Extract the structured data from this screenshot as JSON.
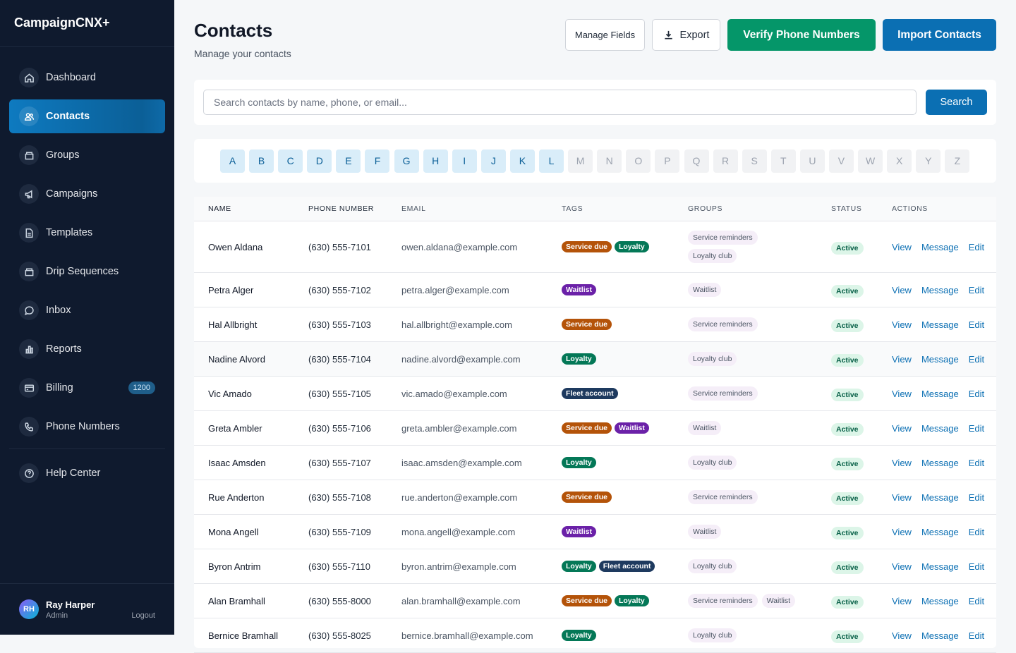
{
  "app": {
    "brand": "CampaignCNX+"
  },
  "sidebar": {
    "items": [
      {
        "label": "Dashboard",
        "icon": "home-icon"
      },
      {
        "label": "Contacts",
        "icon": "users-icon",
        "active": true
      },
      {
        "label": "Groups",
        "icon": "folder-icon"
      },
      {
        "label": "Campaigns",
        "icon": "megaphone-icon"
      },
      {
        "label": "Templates",
        "icon": "document-icon"
      },
      {
        "label": "Drip Sequences",
        "icon": "folder-icon"
      },
      {
        "label": "Inbox",
        "icon": "chat-icon"
      },
      {
        "label": "Reports",
        "icon": "bar-chart-icon"
      },
      {
        "label": "Billing",
        "icon": "credit-card-icon",
        "badge": "1200"
      },
      {
        "label": "Phone Numbers",
        "icon": "phone-icon"
      }
    ],
    "help": {
      "label": "Help Center",
      "icon": "help-icon"
    },
    "user": {
      "initials": "RH",
      "name": "Ray Harper",
      "role": "Admin",
      "logout": "Logout"
    }
  },
  "header": {
    "title": "Contacts",
    "subtitle": "Manage your contacts",
    "manage_fields": "Manage Fields",
    "export": "Export",
    "verify": "Verify Phone Numbers",
    "import": "Import Contacts"
  },
  "search": {
    "placeholder": "Search contacts by name, phone, or email...",
    "button": "Search"
  },
  "alphabet": {
    "enabled": [
      "A",
      "B",
      "C",
      "D",
      "E",
      "F",
      "G",
      "H",
      "I",
      "J",
      "K",
      "L"
    ],
    "disabled": [
      "M",
      "N",
      "O",
      "P",
      "Q",
      "R",
      "S",
      "T",
      "U",
      "V",
      "W",
      "X",
      "Y",
      "Z"
    ]
  },
  "table": {
    "columns": [
      "NAME",
      "PHONE NUMBER",
      "EMAIL",
      "TAGS",
      "GROUPS",
      "STATUS",
      "ACTIONS"
    ],
    "actions": [
      "View",
      "Message",
      "Edit"
    ],
    "rows": [
      {
        "name": "Owen Aldana",
        "phone": "(630) 555-7101",
        "email": "owen.aldana@example.com",
        "tags": [
          "Service due",
          "Loyalty"
        ],
        "groups": [
          "Service reminders",
          "Loyalty club"
        ],
        "status": "Active"
      },
      {
        "name": "Petra Alger",
        "phone": "(630) 555-7102",
        "email": "petra.alger@example.com",
        "tags": [
          "Waitlist"
        ],
        "groups": [
          "Waitlist"
        ],
        "status": "Active"
      },
      {
        "name": "Hal Allbright",
        "phone": "(630) 555-7103",
        "email": "hal.allbright@example.com",
        "tags": [
          "Service due"
        ],
        "groups": [
          "Service reminders"
        ],
        "status": "Active"
      },
      {
        "name": "Nadine Alvord",
        "phone": "(630) 555-7104",
        "email": "nadine.alvord@example.com",
        "tags": [
          "Loyalty"
        ],
        "groups": [
          "Loyalty club"
        ],
        "status": "Active"
      },
      {
        "name": "Vic Amado",
        "phone": "(630) 555-7105",
        "email": "vic.amado@example.com",
        "tags": [
          "Fleet account"
        ],
        "groups": [
          "Service reminders"
        ],
        "status": "Active"
      },
      {
        "name": "Greta Ambler",
        "phone": "(630) 555-7106",
        "email": "greta.ambler@example.com",
        "tags": [
          "Service due",
          "Waitlist"
        ],
        "groups": [
          "Waitlist"
        ],
        "status": "Active"
      },
      {
        "name": "Isaac Amsden",
        "phone": "(630) 555-7107",
        "email": "isaac.amsden@example.com",
        "tags": [
          "Loyalty"
        ],
        "groups": [
          "Loyalty club"
        ],
        "status": "Active"
      },
      {
        "name": "Rue Anderton",
        "phone": "(630) 555-7108",
        "email": "rue.anderton@example.com",
        "tags": [
          "Service due"
        ],
        "groups": [
          "Service reminders"
        ],
        "status": "Active"
      },
      {
        "name": "Mona Angell",
        "phone": "(630) 555-7109",
        "email": "mona.angell@example.com",
        "tags": [
          "Waitlist"
        ],
        "groups": [
          "Waitlist"
        ],
        "status": "Active"
      },
      {
        "name": "Byron Antrim",
        "phone": "(630) 555-7110",
        "email": "byron.antrim@example.com",
        "tags": [
          "Loyalty",
          "Fleet account"
        ],
        "groups": [
          "Loyalty club"
        ],
        "status": "Active"
      },
      {
        "name": "Alan Bramhall",
        "phone": "(630) 555-8000",
        "email": "alan.bramhall@example.com",
        "tags": [
          "Service due",
          "Loyalty"
        ],
        "groups": [
          "Service reminders",
          "Waitlist"
        ],
        "status": "Active"
      },
      {
        "name": "Bernice Bramhall",
        "phone": "(630) 555-8025",
        "email": "bernice.bramhall@example.com",
        "tags": [
          "Loyalty"
        ],
        "groups": [
          "Loyalty club"
        ],
        "status": "Active"
      }
    ]
  }
}
